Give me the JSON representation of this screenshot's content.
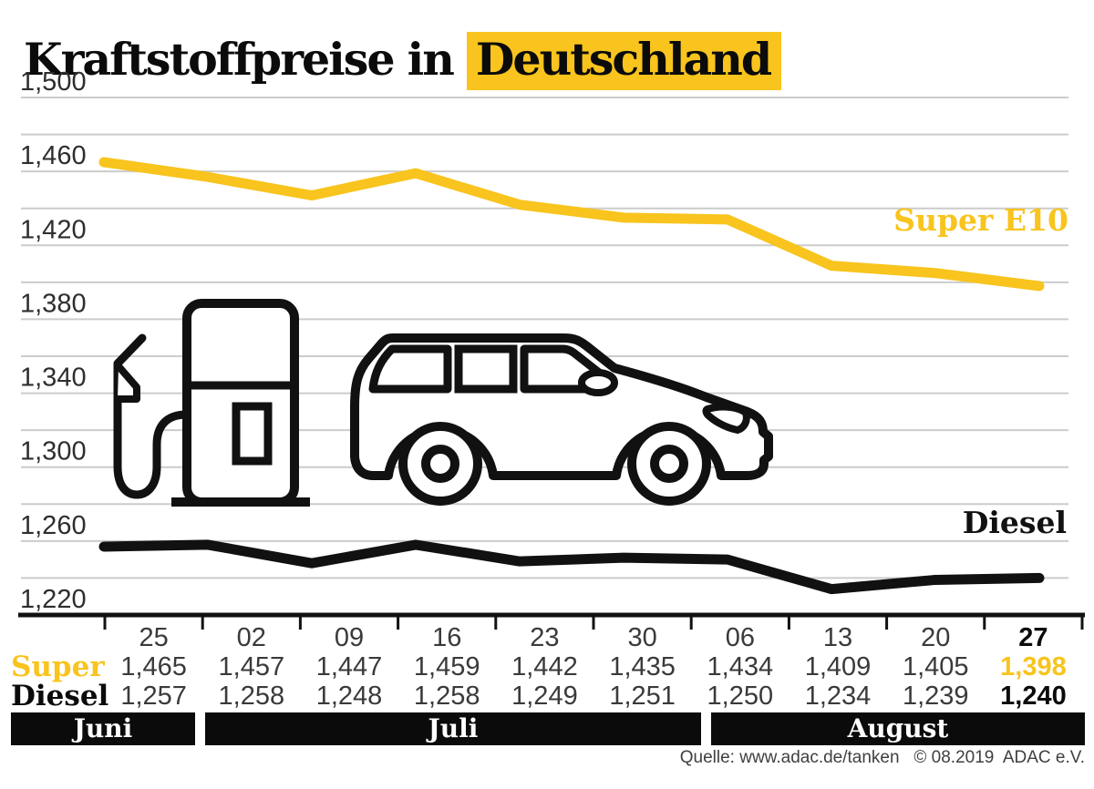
{
  "title": {
    "plain": "Kraftstoffpreise in",
    "highlight": "Deutschland"
  },
  "colors": {
    "accent": "#F8C41D",
    "diesel_line": "#111111",
    "grid": "#CCCCCC",
    "axis": "#111111"
  },
  "series_labels": {
    "super": "Super E10",
    "diesel": "Diesel"
  },
  "chart_data": {
    "type": "line",
    "title": "Kraftstoffpreise in Deutschland",
    "x": [
      "25",
      "02",
      "09",
      "16",
      "23",
      "30",
      "06",
      "13",
      "20",
      "27"
    ],
    "series": [
      {
        "name": "Super E10",
        "color": "#F8C41D",
        "values": [
          1465,
          1457,
          1447,
          1459,
          1442,
          1435,
          1434,
          1409,
          1405,
          1398
        ]
      },
      {
        "name": "Diesel",
        "color": "#111111",
        "values": [
          1257,
          1258,
          1248,
          1258,
          1249,
          1251,
          1250,
          1234,
          1239,
          1240
        ]
      }
    ],
    "ylim": [
      1220,
      1500
    ],
    "grid_step": 20,
    "legend_position": "right-of-lines",
    "grid": "horizontal-only",
    "y_ticks": [
      {
        "value": 1500,
        "label": "1,500"
      },
      {
        "value": 1460,
        "label": "1,460"
      },
      {
        "value": 1420,
        "label": "1,420"
      },
      {
        "value": 1380,
        "label": "1,380"
      },
      {
        "value": 1340,
        "label": "1,340"
      },
      {
        "value": 1300,
        "label": "1,300"
      },
      {
        "value": 1260,
        "label": "1,260"
      },
      {
        "value": 1220,
        "label": "1,220"
      }
    ]
  },
  "table": {
    "date_row": [
      "25",
      "02",
      "09",
      "16",
      "23",
      "30",
      "06",
      "13",
      "20",
      "27"
    ],
    "rows": [
      {
        "label": "Super",
        "values": [
          "1,465",
          "1,457",
          "1,447",
          "1,459",
          "1,442",
          "1,435",
          "1,434",
          "1,409",
          "1,405",
          "1,398"
        ]
      },
      {
        "label": "Diesel",
        "values": [
          "1,257",
          "1,258",
          "1,248",
          "1,258",
          "1,249",
          "1,251",
          "1,250",
          "1,234",
          "1,239",
          "1,240"
        ]
      }
    ]
  },
  "months": [
    {
      "label": "Juni"
    },
    {
      "label": "Juli"
    },
    {
      "label": "August"
    }
  ],
  "source": "Quelle: www.adac.de/tanken   © 08.2019  ADAC e.V."
}
